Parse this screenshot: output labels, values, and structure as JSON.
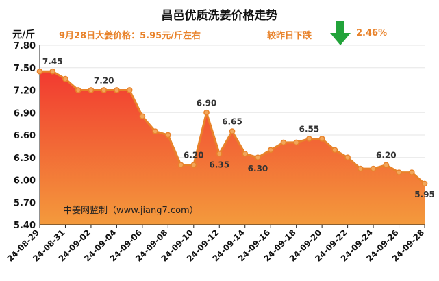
{
  "header": {
    "title": "昌邑优质洗姜价格走势",
    "unit": "元/斤",
    "price_note": "9月28日大姜价格：5.95元/斤左右",
    "change_label": "较昨日下跌",
    "change_pct": "2.46%",
    "arrow_icon": "down-arrow-icon",
    "arrow_color": "#22a33a"
  },
  "watermark": "中姜网监制（www.jiang7.com）",
  "colors": {
    "line": "#e8822a",
    "marker_fill": "#f2a65a",
    "area_top": "#f23a30",
    "area_bottom": "#f39a3c",
    "label": "#333333"
  },
  "chart_data": {
    "type": "area",
    "title": "昌邑优质洗姜价格走势",
    "ylabel": "元/斤",
    "ylim": [
      5.4,
      7.8
    ],
    "yticks": [
      "7.80",
      "7.50",
      "7.20",
      "6.90",
      "6.60",
      "6.30",
      "6.00",
      "5.70",
      "5.40"
    ],
    "x": [
      "24-08-29",
      "24-08-30",
      "24-08-31",
      "24-09-01",
      "24-09-02",
      "24-09-03",
      "24-09-04",
      "24-09-05",
      "24-09-06",
      "24-09-07",
      "24-09-08",
      "24-09-09",
      "24-09-10",
      "24-09-11",
      "24-09-12",
      "24-09-13",
      "24-09-14",
      "24-09-15",
      "24-09-16",
      "24-09-17",
      "24-09-18",
      "24-09-19",
      "24-09-20",
      "24-09-21",
      "24-09-22",
      "24-09-23",
      "24-09-24",
      "24-09-25",
      "24-09-26",
      "24-09-27",
      "24-09-28"
    ],
    "xtick_labels": [
      "24-08-29",
      "24-08-31",
      "24-09-02",
      "24-09-04",
      "24-09-06",
      "24-09-08",
      "24-09-10",
      "24-09-12",
      "24-09-14",
      "24-09-16",
      "24-09-18",
      "24-09-20",
      "24-09-22",
      "24-09-24",
      "24-09-26",
      "24-09-28"
    ],
    "values": [
      7.45,
      7.45,
      7.35,
      7.2,
      7.2,
      7.2,
      7.2,
      7.2,
      6.85,
      6.65,
      6.6,
      6.2,
      6.2,
      6.9,
      6.35,
      6.65,
      6.35,
      6.3,
      6.4,
      6.5,
      6.5,
      6.55,
      6.55,
      6.4,
      6.3,
      6.15,
      6.15,
      6.2,
      6.1,
      6.1,
      5.95
    ],
    "data_labels": [
      {
        "index": 1,
        "text": "7.45"
      },
      {
        "index": 5,
        "text": "7.20"
      },
      {
        "index": 12,
        "text": "6.20"
      },
      {
        "index": 13,
        "text": "6.90"
      },
      {
        "index": 14,
        "text": "6.35"
      },
      {
        "index": 15,
        "text": "6.65"
      },
      {
        "index": 17,
        "text": "6.30"
      },
      {
        "index": 21,
        "text": "6.55"
      },
      {
        "index": 27,
        "text": "6.20"
      },
      {
        "index": 30,
        "text": "5.95"
      }
    ]
  }
}
